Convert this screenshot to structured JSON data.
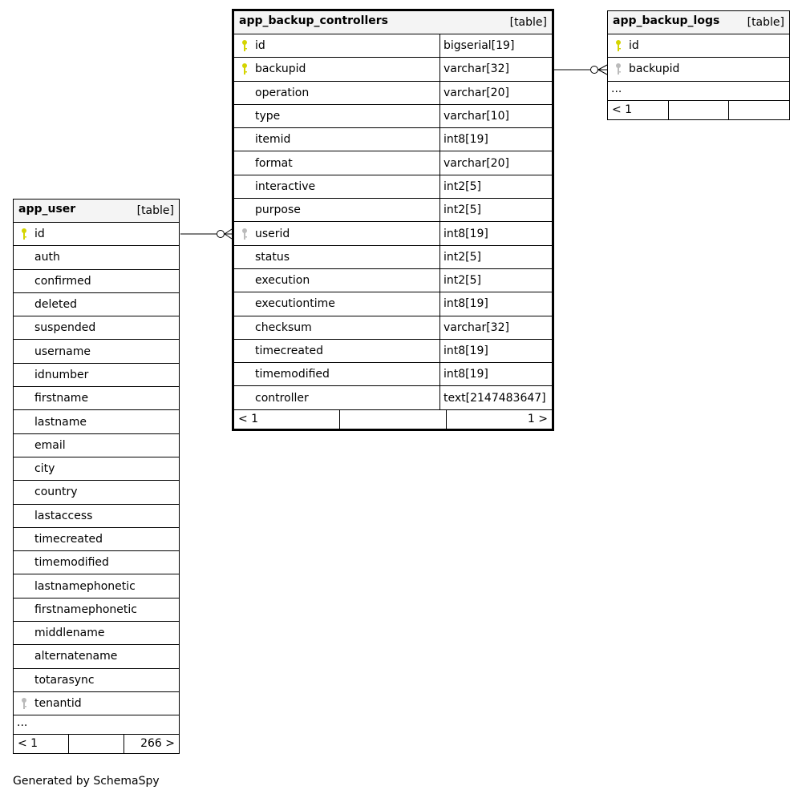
{
  "tables": [
    {
      "id": "app_backup_controllers",
      "name": "app_backup_controllers",
      "kind": "[table]",
      "focus": true,
      "columns": [
        {
          "name": "id",
          "type": "bigserial[19]",
          "key": "primary"
        },
        {
          "name": "backupid",
          "type": "varchar[32]",
          "key": "primary"
        },
        {
          "name": "operation",
          "type": "varchar[20]"
        },
        {
          "name": "type",
          "type": "varchar[10]"
        },
        {
          "name": "itemid",
          "type": "int8[19]"
        },
        {
          "name": "format",
          "type": "varchar[20]"
        },
        {
          "name": "interactive",
          "type": "int2[5]"
        },
        {
          "name": "purpose",
          "type": "int2[5]"
        },
        {
          "name": "userid",
          "type": "int8[19]",
          "key": "foreign"
        },
        {
          "name": "status",
          "type": "int2[5]"
        },
        {
          "name": "execution",
          "type": "int2[5]"
        },
        {
          "name": "executiontime",
          "type": "int8[19]"
        },
        {
          "name": "checksum",
          "type": "varchar[32]"
        },
        {
          "name": "timecreated",
          "type": "int8[19]"
        },
        {
          "name": "timemodified",
          "type": "int8[19]"
        },
        {
          "name": "controller",
          "type": "text[2147483647]"
        }
      ],
      "footer": [
        "< 1",
        "",
        "1 >"
      ]
    },
    {
      "id": "app_backup_logs",
      "name": "app_backup_logs",
      "kind": "[table]",
      "columns": [
        {
          "name": "id",
          "key": "primary"
        },
        {
          "name": "backupid",
          "key": "foreign"
        }
      ],
      "more": "...",
      "footer": [
        "< 1",
        "",
        ""
      ]
    },
    {
      "id": "app_user",
      "name": "app_user",
      "kind": "[table]",
      "columns": [
        {
          "name": "id",
          "key": "primary"
        },
        {
          "name": "auth"
        },
        {
          "name": "confirmed"
        },
        {
          "name": "deleted"
        },
        {
          "name": "suspended"
        },
        {
          "name": "username"
        },
        {
          "name": "idnumber"
        },
        {
          "name": "firstname"
        },
        {
          "name": "lastname"
        },
        {
          "name": "email"
        },
        {
          "name": "city"
        },
        {
          "name": "country"
        },
        {
          "name": "lastaccess"
        },
        {
          "name": "timecreated"
        },
        {
          "name": "timemodified"
        },
        {
          "name": "lastnamephonetic"
        },
        {
          "name": "firstnamephonetic"
        },
        {
          "name": "middlename"
        },
        {
          "name": "alternatename"
        },
        {
          "name": "totarasync"
        },
        {
          "name": "tenantid",
          "key": "foreign"
        }
      ],
      "more": "...",
      "footer": [
        "< 1",
        "",
        "266 >"
      ]
    }
  ],
  "colors": {
    "primary_key": "#d4d400",
    "foreign_key": "#bbbbbb",
    "header_bg": "#f4f4f4"
  },
  "generated_by": "Generated by SchemaSpy"
}
